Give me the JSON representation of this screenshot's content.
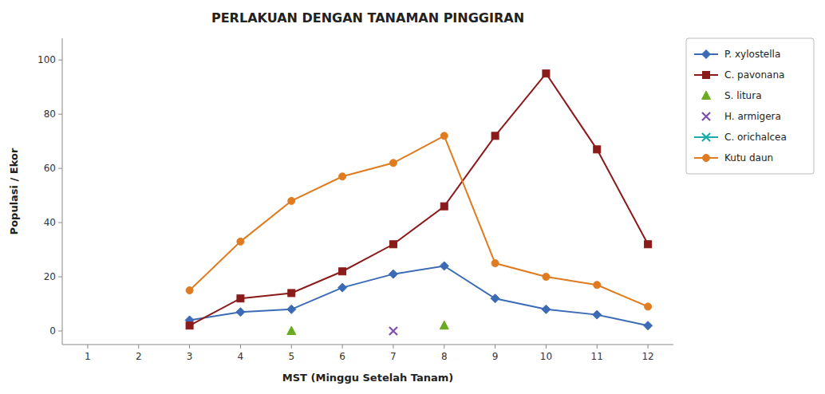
{
  "chart_data": {
    "type": "line",
    "title": "PERLAKUAN DENGAN TANAMAN PINGGIRAN",
    "xlabel": "MST (Minggu Setelah Tanam)",
    "ylabel": "Populasi / Ekor",
    "xlim": [
      0.5,
      12.5
    ],
    "xticks": [
      1,
      2,
      3,
      4,
      5,
      6,
      7,
      8,
      9,
      10,
      11,
      12
    ],
    "ylim": [
      -5,
      108
    ],
    "yticks": [
      0,
      20,
      40,
      60,
      80,
      100
    ],
    "grid": false,
    "legend": "upper right",
    "series": [
      {
        "name": "P. xylostella",
        "color": "#3B6BB5",
        "marker": "diamond",
        "line_style": "solid",
        "x": [
          3,
          4,
          5,
          6,
          7,
          8,
          9,
          10,
          11,
          12
        ],
        "values": [
          4,
          7,
          8,
          16,
          21,
          24,
          12,
          8,
          6,
          2
        ]
      },
      {
        "name": "C. pavonana",
        "color": "#8B1A1A",
        "marker": "square",
        "line_style": "solid",
        "x": [
          3,
          4,
          5,
          6,
          7,
          8,
          9,
          10,
          11,
          12
        ],
        "values": [
          2,
          12,
          14,
          22,
          32,
          46,
          72,
          95,
          67,
          32
        ]
      },
      {
        "name": "S. litura",
        "color": "#6AAB20",
        "marker": "triangle",
        "line_style": "none",
        "x": [
          5,
          8
        ],
        "values": [
          0,
          2
        ]
      },
      {
        "name": "H. armigera",
        "color": "#7B4FAF",
        "marker": "x",
        "line_style": "none",
        "x": [
          7
        ],
        "values": [
          0
        ]
      },
      {
        "name": "C. orichalcea",
        "color": "#1AABAA",
        "marker": "x",
        "line_style": "solid",
        "x": [],
        "values": []
      },
      {
        "name": "Kutu daun",
        "color": "#E07B20",
        "marker": "circle",
        "line_style": "solid",
        "x": [
          3,
          4,
          5,
          6,
          7,
          8,
          9,
          10,
          11,
          12
        ],
        "values": [
          15,
          33,
          48,
          57,
          62,
          72,
          25,
          20,
          17,
          9
        ]
      }
    ]
  }
}
